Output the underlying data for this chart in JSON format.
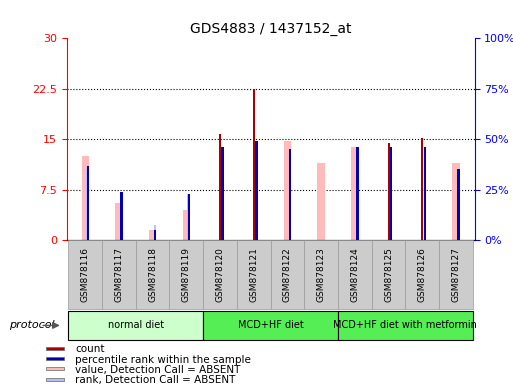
{
  "title": "GDS4883 / 1437152_at",
  "samples": [
    "GSM878116",
    "GSM878117",
    "GSM878118",
    "GSM878119",
    "GSM878120",
    "GSM878121",
    "GSM878122",
    "GSM878123",
    "GSM878124",
    "GSM878125",
    "GSM878126",
    "GSM878127"
  ],
  "count_values": [
    0,
    0,
    0,
    0,
    15.8,
    22.5,
    0,
    0,
    0,
    14.5,
    15.2,
    0
  ],
  "percentile_values": [
    11.0,
    7.2,
    1.5,
    6.8,
    13.8,
    14.8,
    13.5,
    0,
    13.8,
    13.8,
    13.8,
    10.5
  ],
  "value_absent": [
    12.5,
    5.5,
    1.5,
    4.5,
    0,
    0,
    14.8,
    11.5,
    13.8,
    0,
    0,
    11.5
  ],
  "rank_absent": [
    10.5,
    7.2,
    2.2,
    6.8,
    0,
    0,
    0,
    0,
    0,
    0,
    0,
    10.5
  ],
  "ylim": [
    0,
    30
  ],
  "yticks": [
    0,
    7.5,
    15,
    22.5,
    30
  ],
  "y2ticks_vals": [
    0,
    7.5,
    15,
    22.5,
    30
  ],
  "y2ticks_labels": [
    "0%",
    "25%",
    "50%",
    "75%",
    "100%"
  ],
  "groups": [
    {
      "label": "normal diet",
      "start": 0,
      "end": 4,
      "color": "#ccffcc"
    },
    {
      "label": "MCD+HF diet",
      "start": 4,
      "end": 8,
      "color": "#55ee55"
    },
    {
      "label": "MCD+HF diet with metformin",
      "start": 8,
      "end": 12,
      "color": "#55ee55"
    }
  ],
  "count_color": "#aa0000",
  "percentile_color": "#0000bb",
  "value_absent_color": "#ffbbbb",
  "rank_absent_color": "#bbbbff",
  "legend_items": [
    {
      "label": "count",
      "color": "#aa0000"
    },
    {
      "label": "percentile rank within the sample",
      "color": "#0000bb"
    },
    {
      "label": "value, Detection Call = ABSENT",
      "color": "#ffbbbb"
    },
    {
      "label": "rank, Detection Call = ABSENT",
      "color": "#bbbbff"
    }
  ]
}
